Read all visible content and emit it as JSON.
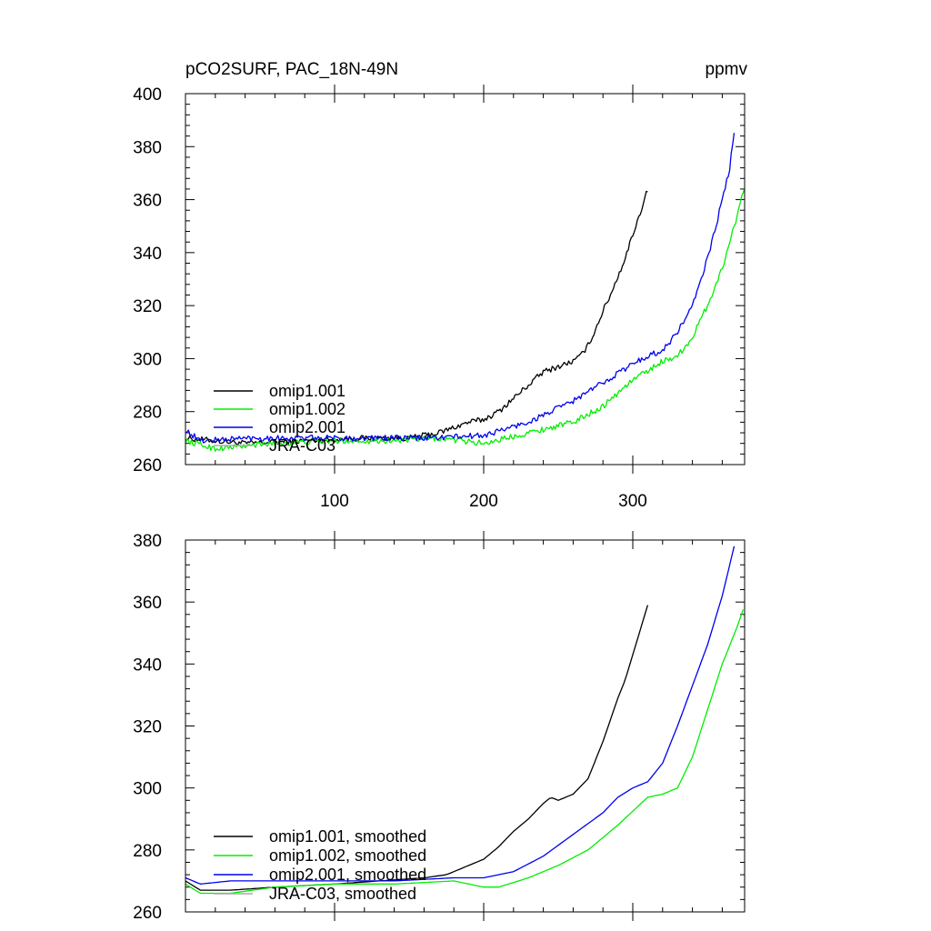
{
  "chart_data": [
    {
      "type": "line",
      "title_left": "pCO2SURF, PAC_18N-49N",
      "title_right": "ppmv",
      "xlabel": "",
      "ylabel": "",
      "xlim": [
        0,
        375
      ],
      "ylim": [
        260,
        400
      ],
      "x_ticks": [
        100,
        200,
        300
      ],
      "y_ticks": [
        260,
        280,
        300,
        320,
        340,
        360,
        380,
        400
      ],
      "legend_position": "bottom-left",
      "smoothed": false,
      "series": [
        {
          "name": "omip1.001",
          "color": "#000000",
          "x": [
            0,
            40,
            80,
            120,
            150,
            170,
            180,
            190,
            200,
            210,
            220,
            230,
            240,
            250,
            260,
            265,
            270,
            275,
            280,
            285,
            290,
            295,
            300,
            305,
            310
          ],
          "y": [
            270,
            268,
            269,
            270,
            270,
            272,
            274,
            276,
            277,
            280,
            285,
            290,
            295,
            297,
            299,
            301,
            305,
            311,
            318,
            324,
            331,
            338,
            347,
            355,
            364
          ]
        },
        {
          "name": "omip1.002",
          "color": "#00ee00",
          "x": [
            0,
            20,
            60,
            100,
            140,
            170,
            200,
            230,
            260,
            280,
            300,
            320,
            330,
            340,
            350,
            355,
            360,
            365,
            370,
            375
          ],
          "y": [
            269,
            266,
            268,
            269,
            269,
            270,
            268,
            272,
            276,
            282,
            292,
            299,
            301,
            308,
            320,
            327,
            334,
            344,
            354,
            365
          ]
        },
        {
          "name": "omip2.001",
          "color": "#0000ee",
          "x": [
            0,
            10,
            40,
            80,
            120,
            160,
            200,
            230,
            260,
            280,
            300,
            310,
            320,
            330,
            340,
            345,
            350,
            355,
            360,
            365,
            368
          ],
          "y": [
            273,
            269,
            270,
            270,
            270,
            270,
            271,
            276,
            284,
            291,
            298,
            301,
            303,
            310,
            320,
            328,
            338,
            348,
            360,
            372,
            385
          ]
        },
        {
          "name": "JRA-C03",
          "color": "#aaaaaa",
          "x": [],
          "y": []
        }
      ]
    },
    {
      "type": "line",
      "title_left": "",
      "title_right": "",
      "xlabel": "",
      "ylabel": "",
      "xlim": [
        0,
        375
      ],
      "ylim": [
        260,
        380
      ],
      "x_ticks": [
        100,
        200,
        300
      ],
      "y_ticks": [
        260,
        280,
        300,
        320,
        340,
        360,
        380
      ],
      "legend_position": "bottom-left",
      "smoothed": true,
      "series": [
        {
          "name": "omip1.001, smoothed",
          "color": "#000000",
          "x": [
            0,
            10,
            30,
            60,
            100,
            130,
            160,
            175,
            190,
            200,
            210,
            220,
            230,
            240,
            245,
            250,
            260,
            270,
            280,
            285,
            290,
            295,
            300,
            305,
            310
          ],
          "y": [
            270,
            267,
            267,
            268,
            269,
            270,
            271,
            272,
            275,
            277,
            281,
            286,
            290,
            295,
            297,
            296,
            298,
            303,
            315,
            322,
            329,
            335,
            343,
            351,
            359
          ]
        },
        {
          "name": "omip1.002, smoothed",
          "color": "#00ee00",
          "x": [
            0,
            10,
            30,
            60,
            100,
            140,
            180,
            200,
            210,
            230,
            250,
            270,
            290,
            310,
            320,
            330,
            340,
            350,
            360,
            370,
            375
          ],
          "y": [
            269,
            266,
            266,
            268,
            269,
            269,
            270,
            268,
            268,
            271,
            275,
            280,
            288,
            297,
            298,
            300,
            310,
            325,
            340,
            352,
            359
          ]
        },
        {
          "name": "omip2.001, smoothed",
          "color": "#0000ee",
          "x": [
            0,
            10,
            30,
            60,
            100,
            140,
            180,
            200,
            220,
            240,
            260,
            280,
            290,
            300,
            310,
            320,
            330,
            340,
            350,
            360,
            365,
            368
          ],
          "y": [
            271,
            269,
            270,
            270,
            270,
            270,
            271,
            271,
            273,
            278,
            285,
            292,
            297,
            300,
            302,
            308,
            320,
            333,
            346,
            362,
            372,
            378
          ]
        },
        {
          "name": "JRA-C03, smoothed",
          "color": "#aaaaaa",
          "x": [],
          "y": []
        }
      ]
    }
  ]
}
